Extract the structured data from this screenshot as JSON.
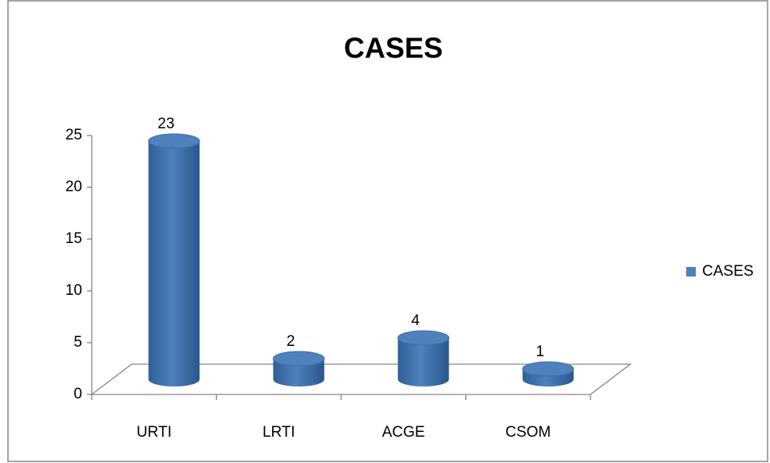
{
  "chart_data": {
    "type": "bar",
    "title": "CASES",
    "categories": [
      "URTI",
      "LRTI",
      "ACGE",
      "CSOM"
    ],
    "series": [
      {
        "name": "CASES",
        "color": "#4f81bd",
        "values": [
          23,
          2,
          4,
          1
        ]
      }
    ],
    "ylim": [
      0,
      25
    ],
    "yticks": [
      0,
      5,
      10,
      15,
      20,
      25
    ],
    "grid": false,
    "legend": "right"
  }
}
